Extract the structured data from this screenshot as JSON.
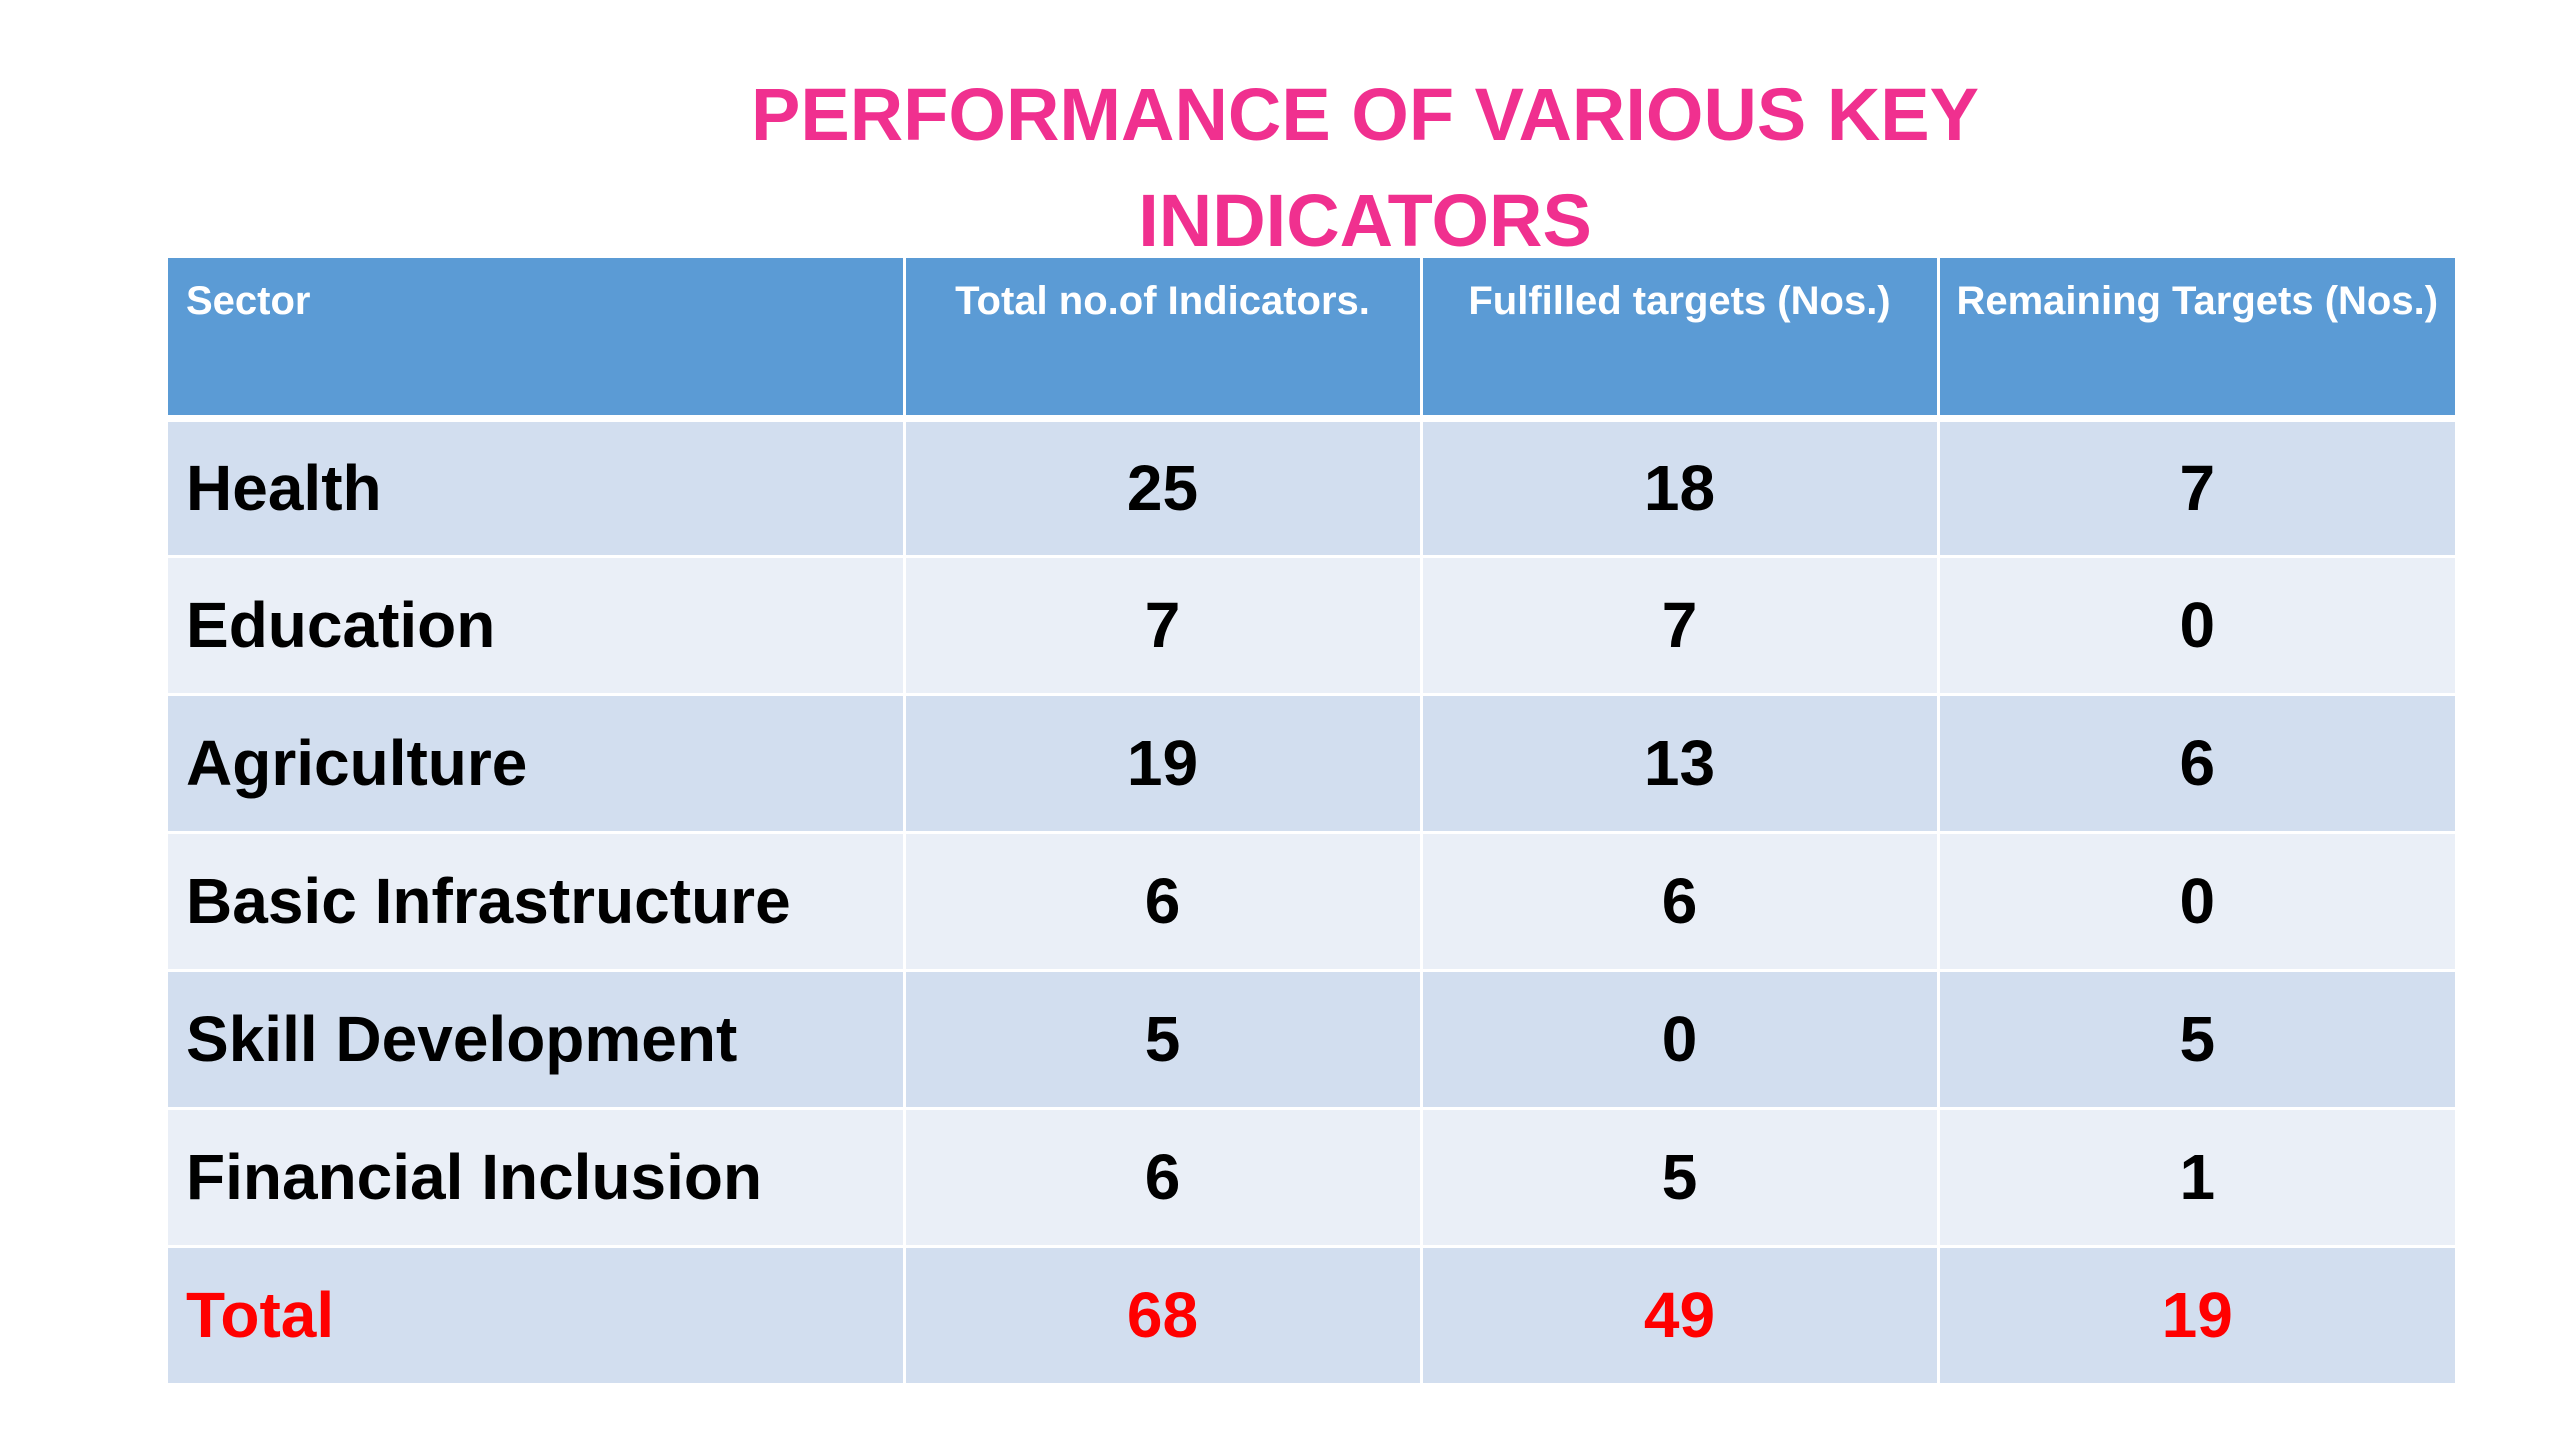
{
  "title": {
    "line1": "PERFORMANCE OF VARIOUS KEY",
    "line2": "INDICATORS"
  },
  "colors": {
    "title": "#f0308f",
    "header_bg": "#5b9bd5",
    "row_band_dark": "#d2deef",
    "row_band_light": "#eaeff7",
    "total_text": "#ff0000"
  },
  "table": {
    "headers": [
      "Sector",
      "Total no.of Indicators.",
      "Fulfilled targets (Nos.)",
      "Remaining Targets (Nos.)"
    ],
    "rows": [
      {
        "sector": "Health",
        "total": "25",
        "fulfilled": "18",
        "remaining": "7"
      },
      {
        "sector": "Education",
        "total": "7",
        "fulfilled": "7",
        "remaining": "0"
      },
      {
        "sector": "Agriculture",
        "total": "19",
        "fulfilled": "13",
        "remaining": "6"
      },
      {
        "sector": "Basic Infrastructure",
        "total": "6",
        "fulfilled": "6",
        "remaining": "0"
      },
      {
        "sector": "Skill Development",
        "total": "5",
        "fulfilled": "0",
        "remaining": "5"
      },
      {
        "sector": "Financial Inclusion",
        "total": "6",
        "fulfilled": "5",
        "remaining": "1"
      }
    ],
    "total_row": {
      "sector": "Total",
      "total": "68",
      "fulfilled": "49",
      "remaining": "19"
    }
  }
}
